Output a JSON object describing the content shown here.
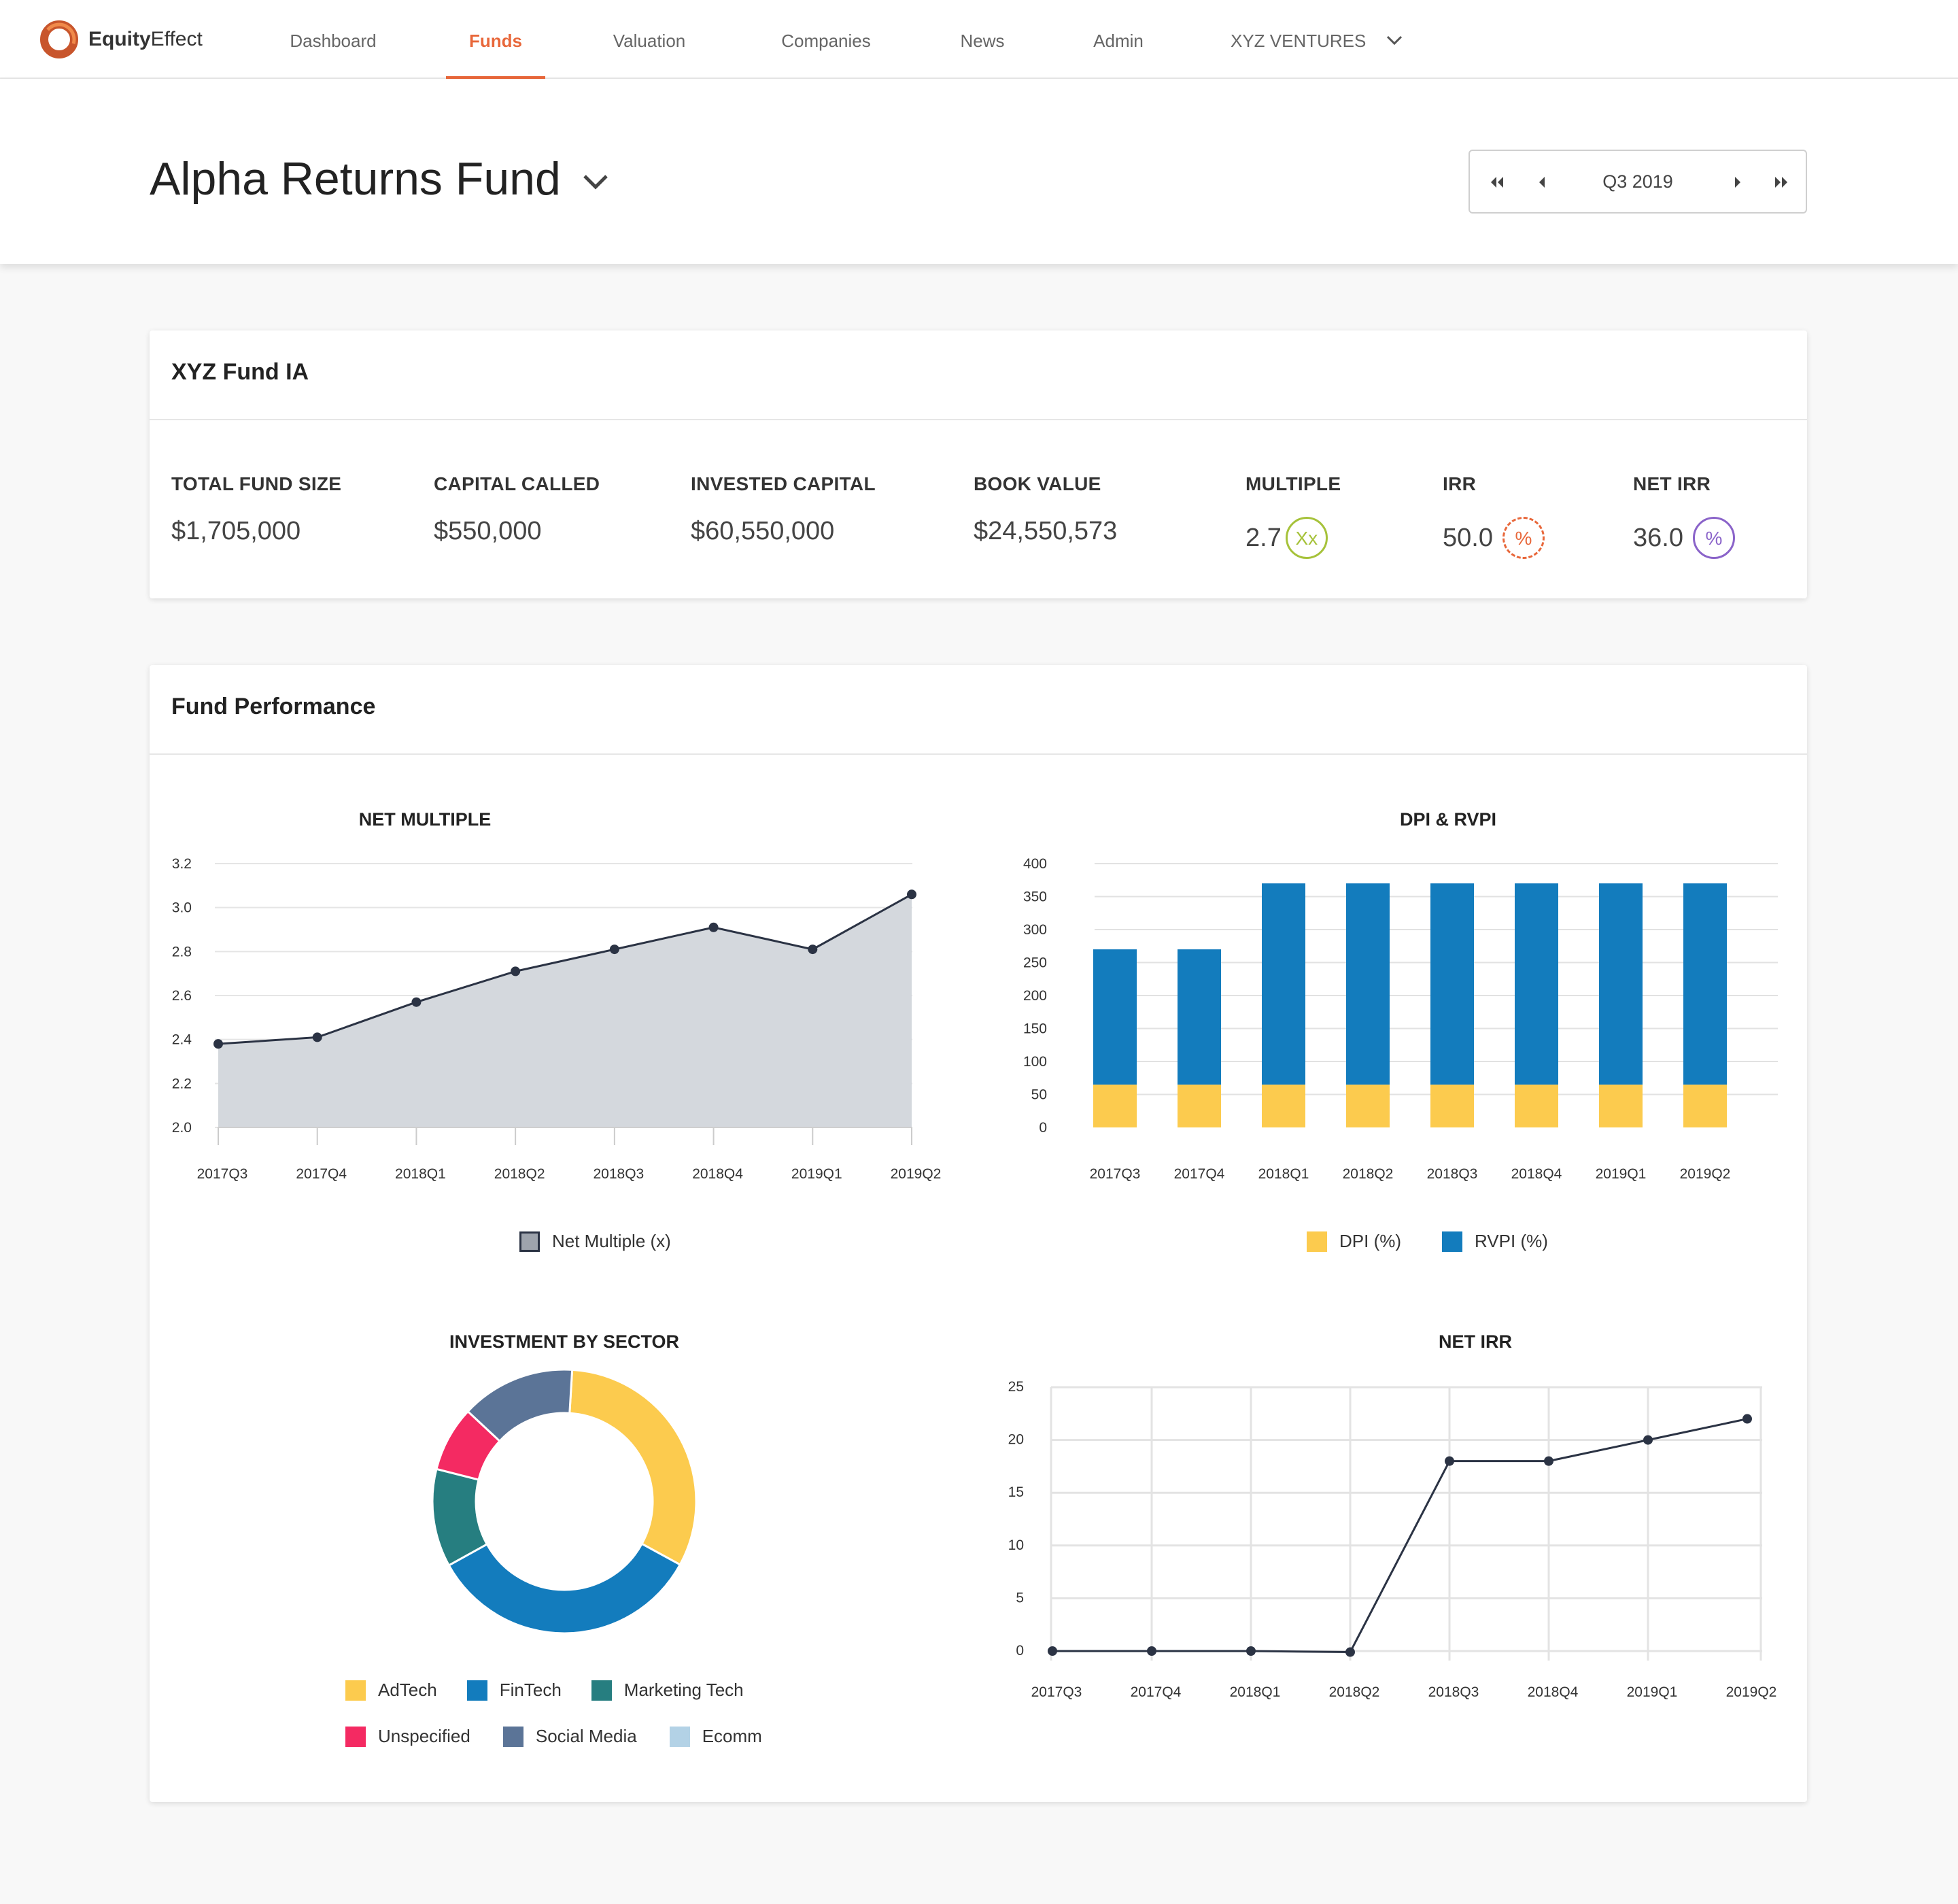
{
  "brand": {
    "name_bold": "Equity",
    "name_light": "Effect",
    "accent": "#e8673a"
  },
  "nav": {
    "items": [
      "Dashboard",
      "Funds",
      "Valuation",
      "Companies",
      "News",
      "Admin"
    ],
    "active": "Funds",
    "account": "XYZ VENTURES"
  },
  "header": {
    "title": "Alpha Returns Fund",
    "period": "Q3 2019"
  },
  "summary": {
    "title": "XYZ Fund IA",
    "metrics": [
      {
        "label": "TOTAL FUND SIZE",
        "value": "$1,705,000"
      },
      {
        "label": "CAPITAL CALLED",
        "value": "$550,000"
      },
      {
        "label": "INVESTED CAPITAL",
        "value": "$60,550,000"
      },
      {
        "label": "BOOK VALUE",
        "value": "$24,550,573"
      },
      {
        "label": "MULTIPLE",
        "value": "2.7",
        "badge": "Xx",
        "badge_color": "#a6c23a"
      },
      {
        "label": "IRR",
        "value": "50.0",
        "badge": "%",
        "badge_color": "#e8673a"
      },
      {
        "label": "NET IRR",
        "value": "36.0",
        "badge": "%",
        "badge_color": "#8a63c9"
      }
    ]
  },
  "performance": {
    "title": "Fund Performance"
  },
  "chart_data": [
    {
      "type": "area",
      "title": "NET MULTIPLE",
      "x": [
        "2017Q3",
        "2017Q4",
        "2018Q1",
        "2018Q2",
        "2018Q3",
        "2018Q4",
        "2019Q1",
        "2019Q2"
      ],
      "series": [
        {
          "name": "Net Multiple (x)",
          "values": [
            2.38,
            2.41,
            2.57,
            2.71,
            2.81,
            2.91,
            2.81,
            3.06
          ],
          "color": "#d4d8dd"
        }
      ],
      "ylim": [
        2.0,
        3.2
      ],
      "yticks": [
        "2.0",
        "2.2",
        "2.4",
        "2.6",
        "2.8",
        "3.0",
        "3.2"
      ],
      "grid": true,
      "legend": "bottom"
    },
    {
      "type": "bar",
      "title": "DPI & RVPI",
      "stacked": true,
      "categories": [
        "2017Q3",
        "2017Q4",
        "2018Q1",
        "2018Q2",
        "2018Q3",
        "2018Q4",
        "2019Q1",
        "2019Q2"
      ],
      "series": [
        {
          "name": "DPI (%)",
          "values": [
            65,
            65,
            65,
            65,
            65,
            65,
            65,
            65
          ],
          "color": "#fccb4e"
        },
        {
          "name": "RVPI (%)",
          "values": [
            205,
            205,
            305,
            305,
            305,
            305,
            305,
            305
          ],
          "color": "#137cbd"
        }
      ],
      "ylim": [
        0,
        400
      ],
      "yticks": [
        "0",
        "50",
        "100",
        "150",
        "200",
        "250",
        "300",
        "350",
        "400"
      ],
      "legend": "bottom"
    },
    {
      "type": "pie",
      "title": "INVESTMENT BY SECTOR",
      "donut": true,
      "slices": [
        {
          "name": "AdTech",
          "value": 32,
          "color": "#fccb4e"
        },
        {
          "name": "FinTech",
          "value": 34,
          "color": "#137cbd"
        },
        {
          "name": "Marketing Tech",
          "value": 12,
          "color": "#267e80"
        },
        {
          "name": "Unspecified",
          "value": 8,
          "color": "#f42a62"
        },
        {
          "name": "Social Media",
          "value": 14,
          "color": "#5b7497"
        },
        {
          "name": "Ecomm",
          "value": 0,
          "color": "#b3d2e6"
        }
      ],
      "legend": "bottom"
    },
    {
      "type": "line",
      "title": "NET IRR",
      "x": [
        "2017Q3",
        "2017Q4",
        "2018Q1",
        "2018Q2",
        "2018Q3",
        "2018Q4",
        "2019Q1",
        "2019Q2"
      ],
      "series": [
        {
          "values": [
            0,
            0,
            0,
            -0.1,
            18,
            18,
            20,
            22
          ],
          "color": "#2b3344"
        }
      ],
      "ylim": [
        0,
        25
      ],
      "yticks": [
        "0",
        "5",
        "10",
        "15",
        "20",
        "25"
      ],
      "grid": true
    }
  ]
}
